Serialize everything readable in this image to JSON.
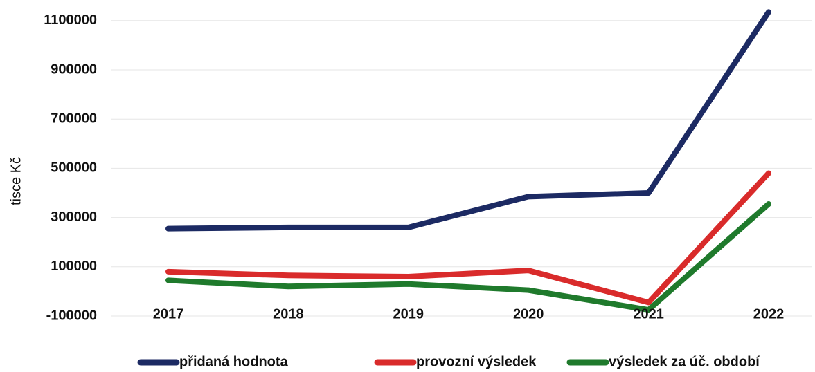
{
  "chart_data": {
    "type": "line",
    "y_axis_label": "tisce Kč",
    "categories": [
      "2017",
      "2018",
      "2019",
      "2020",
      "2021",
      "2022"
    ],
    "series": [
      {
        "name": "přidaná hodnota",
        "color": "#1c2a63",
        "values": [
          255000,
          260000,
          260000,
          385000,
          400000,
          1135000
        ]
      },
      {
        "name": "provozní výsledek",
        "color": "#d92b2b",
        "values": [
          80000,
          65000,
          60000,
          85000,
          -45000,
          480000
        ]
      },
      {
        "name": "výsledek za úč. období",
        "color": "#1f7a2c",
        "values": [
          45000,
          20000,
          30000,
          5000,
          -75000,
          355000
        ]
      }
    ],
    "ylim": [
      -100000,
      1150000
    ],
    "yticks": [
      -100000,
      100000,
      300000,
      500000,
      700000,
      900000,
      1100000
    ],
    "grid": true,
    "legend": "bottom"
  }
}
